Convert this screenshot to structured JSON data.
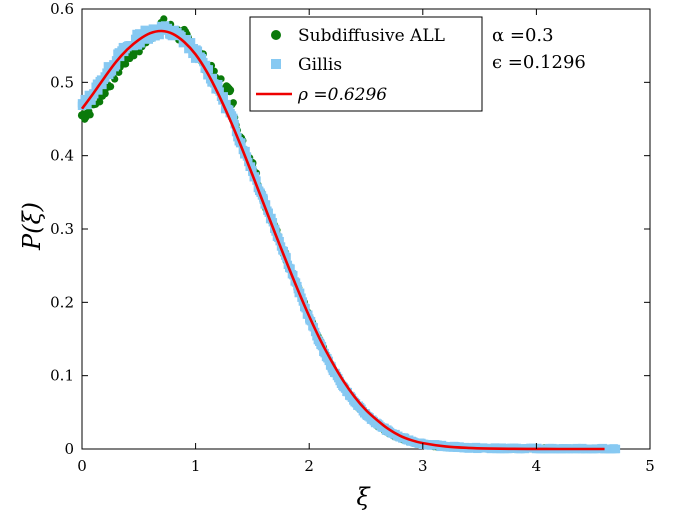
{
  "chart_data": {
    "type": "line",
    "xlabel": "ξ",
    "ylabel": "P(ξ)",
    "xlim": [
      0,
      5
    ],
    "ylim": [
      0,
      0.6
    ],
    "xticks": [
      0,
      1,
      2,
      3,
      4,
      5
    ],
    "yticks": [
      0,
      0.1,
      0.2,
      0.3,
      0.4,
      0.5,
      0.6
    ],
    "xtick_labels": [
      "0",
      "1",
      "2",
      "3",
      "4",
      "5"
    ],
    "ytick_labels": [
      "0",
      "0.1",
      "0.2",
      "0.3",
      "0.4",
      "0.5",
      "0.6"
    ],
    "grid": false,
    "legend_position": "top-center",
    "annotations": [
      "α =0.3",
      "ϵ =0.1296"
    ],
    "series": [
      {
        "name": "Subdiffusive ALL",
        "kind": "scatter",
        "marker": "circle",
        "color": "#0a7a0a",
        "x": [
          0.0,
          0.05,
          0.1,
          0.2,
          0.3,
          0.4,
          0.5,
          0.6,
          0.7,
          0.8,
          0.9,
          1.0,
          1.1,
          1.2,
          1.3,
          1.4,
          1.5,
          1.6,
          1.7,
          1.8,
          1.9,
          2.0,
          2.1,
          2.2,
          2.3,
          2.4,
          2.5,
          2.6,
          2.7,
          2.8,
          2.9,
          3.0,
          3.2,
          3.4,
          3.6,
          3.8,
          4.0,
          4.2,
          4.4,
          4.62
        ],
        "y": [
          0.455,
          0.458,
          0.47,
          0.49,
          0.515,
          0.535,
          0.55,
          0.565,
          0.578,
          0.57,
          0.562,
          0.545,
          0.522,
          0.5,
          0.488,
          0.42,
          0.39,
          0.34,
          0.3,
          0.26,
          0.22,
          0.18,
          0.145,
          0.11,
          0.085,
          0.063,
          0.046,
          0.032,
          0.022,
          0.015,
          0.01,
          0.006,
          0.003,
          0.0015,
          0.0008,
          0.0004,
          0.0002,
          0.0001,
          0.0,
          0.0
        ]
      },
      {
        "name": "Gillis",
        "kind": "scatter",
        "marker": "square",
        "color": "#87c9f2",
        "x": [
          0.0,
          0.05,
          0.1,
          0.2,
          0.3,
          0.4,
          0.5,
          0.6,
          0.7,
          0.8,
          0.9,
          1.0,
          1.1,
          1.2,
          1.3,
          1.4,
          1.5,
          1.6,
          1.7,
          1.8,
          1.9,
          2.0,
          2.1,
          2.2,
          2.3,
          2.4,
          2.5,
          2.6,
          2.7,
          2.8,
          2.9,
          3.0,
          3.2,
          3.4,
          3.6,
          3.8,
          4.0,
          4.2,
          4.4,
          4.6,
          4.7
        ],
        "y": [
          0.468,
          0.475,
          0.485,
          0.508,
          0.53,
          0.548,
          0.56,
          0.568,
          0.572,
          0.566,
          0.558,
          0.54,
          0.518,
          0.49,
          0.458,
          0.418,
          0.38,
          0.34,
          0.3,
          0.26,
          0.218,
          0.178,
          0.142,
          0.11,
          0.085,
          0.064,
          0.047,
          0.034,
          0.024,
          0.016,
          0.011,
          0.007,
          0.0035,
          0.0017,
          0.0008,
          0.0004,
          0.0002,
          0.0001,
          0.0,
          0.0,
          0.0
        ]
      },
      {
        "name": "ρ =0.6296",
        "kind": "line",
        "color": "#ee0000",
        "x": [
          0.0,
          0.1,
          0.2,
          0.3,
          0.4,
          0.5,
          0.6,
          0.7,
          0.8,
          0.9,
          1.0,
          1.1,
          1.2,
          1.3,
          1.4,
          1.5,
          1.6,
          1.7,
          1.8,
          1.9,
          2.0,
          2.1,
          2.2,
          2.3,
          2.4,
          2.5,
          2.6,
          2.7,
          2.8,
          2.9,
          3.0,
          3.2,
          3.4,
          3.6,
          3.8,
          4.0,
          4.2,
          4.4,
          4.6
        ],
        "y": [
          0.464,
          0.485,
          0.507,
          0.528,
          0.545,
          0.558,
          0.567,
          0.57,
          0.566,
          0.555,
          0.538,
          0.514,
          0.484,
          0.45,
          0.413,
          0.374,
          0.334,
          0.294,
          0.255,
          0.217,
          0.181,
          0.148,
          0.119,
          0.093,
          0.071,
          0.053,
          0.039,
          0.027,
          0.018,
          0.012,
          0.008,
          0.0035,
          0.0015,
          0.0006,
          0.0002,
          0.0001,
          0.0,
          0.0,
          0.0
        ]
      }
    ]
  }
}
